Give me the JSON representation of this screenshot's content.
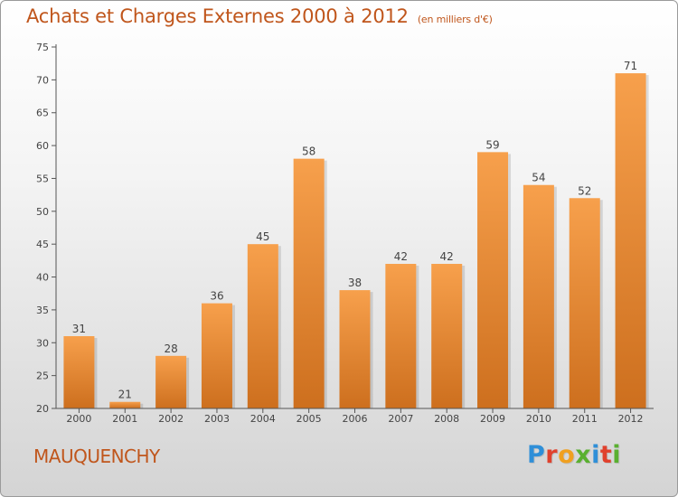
{
  "title": "Achats et Charges Externes 2000 à 2012",
  "subtitle": "(en milliers d'€)",
  "commune": "MAUQUENCHY",
  "brand": {
    "letters": [
      "P",
      "r",
      "o",
      "x",
      "i",
      "t",
      "i"
    ],
    "colors": [
      "#2f8fd8",
      "#e0412d",
      "#f0a020",
      "#5ab030",
      "#2f8fd8",
      "#e0412d",
      "#5ab030"
    ]
  },
  "colors": {
    "bar_top": "#f7a04c",
    "bar_bottom": "#cd6f1e",
    "title": "#c0561c",
    "axis": "#555555"
  },
  "chart_data": {
    "type": "bar",
    "categories": [
      "2000",
      "2001",
      "2002",
      "2003",
      "2004",
      "2005",
      "2006",
      "2007",
      "2008",
      "2009",
      "2010",
      "2011",
      "2012"
    ],
    "values": [
      31,
      21,
      28,
      36,
      45,
      58,
      38,
      42,
      42,
      59,
      54,
      52,
      71
    ],
    "ylim": [
      20,
      75
    ],
    "yticks": [
      20,
      25,
      30,
      35,
      40,
      45,
      50,
      55,
      60,
      65,
      70,
      75
    ],
    "xlabel": "",
    "ylabel": "",
    "grid": false,
    "legend": "none"
  }
}
